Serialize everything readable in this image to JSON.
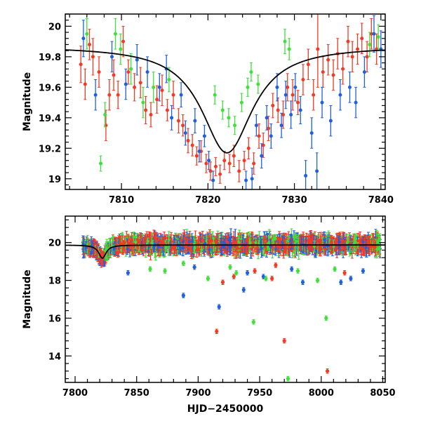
{
  "colors": {
    "red": "#f23a24",
    "blue": "#1f5fe0",
    "green": "#3ee03a",
    "model": "#000000"
  },
  "chart_data": [
    {
      "type": "scatter",
      "panel": "top",
      "xlabel": "",
      "ylabel": "Magnitude",
      "xlim": [
        7803.5,
        7840.5
      ],
      "ylim": [
        20.08,
        18.93
      ],
      "y_inverted": true,
      "xticks": [
        7810,
        7820,
        7830,
        7840
      ],
      "yticks": [
        19,
        19.2,
        19.4,
        19.6,
        19.8,
        20
      ],
      "model_curve": {
        "t0": 7822.2,
        "peak_mag": 19.17,
        "baseline_mag": 19.87,
        "width_days": 3.6
      },
      "series": [
        {
          "name": "red",
          "color_key": "red",
          "points": [
            [
              7805.3,
              19.75,
              0.12
            ],
            [
              7805.8,
              19.62,
              0.1
            ],
            [
              7806.3,
              19.88,
              0.1
            ],
            [
              7806.7,
              19.8,
              0.12
            ],
            [
              7807.4,
              19.7,
              0.1
            ],
            [
              7808.2,
              19.35,
              0.1
            ],
            [
              7808.6,
              19.55,
              0.1
            ],
            [
              7809.1,
              19.68,
              0.1
            ],
            [
              7809.6,
              19.55,
              0.09
            ],
            [
              7810.2,
              19.9,
              0.1
            ],
            [
              7810.8,
              19.7,
              0.08
            ],
            [
              7811.5,
              19.6,
              0.09
            ],
            [
              7812.2,
              19.63,
              0.1
            ],
            [
              7812.8,
              19.45,
              0.09
            ],
            [
              7813.4,
              19.42,
              0.08
            ],
            [
              7814.1,
              19.52,
              0.09
            ],
            [
              7814.7,
              19.58,
              0.1
            ],
            [
              7815.3,
              19.45,
              0.07
            ],
            [
              7816.0,
              19.55,
              0.09
            ],
            [
              7816.6,
              19.38,
              0.08
            ],
            [
              7817.1,
              19.35,
              0.07
            ],
            [
              7817.7,
              19.25,
              0.08
            ],
            [
              7818.2,
              19.22,
              0.07
            ],
            [
              7818.7,
              19.15,
              0.06
            ],
            [
              7819.2,
              19.18,
              0.07
            ],
            [
              7819.8,
              19.1,
              0.06
            ],
            [
              7820.3,
              19.05,
              0.06
            ],
            [
              7820.9,
              19.08,
              0.06
            ],
            [
              7821.4,
              19.03,
              0.06
            ],
            [
              7821.9,
              19.12,
              0.06
            ],
            [
              7822.5,
              19.1,
              0.06
            ],
            [
              7823.0,
              19.15,
              0.07
            ],
            [
              7823.6,
              19.05,
              0.07
            ],
            [
              7824.2,
              19.12,
              0.06
            ],
            [
              7824.7,
              19.2,
              0.07
            ],
            [
              7825.3,
              19.1,
              0.07
            ],
            [
              7825.9,
              19.28,
              0.08
            ],
            [
              7826.4,
              19.22,
              0.08
            ],
            [
              7827.0,
              19.33,
              0.08
            ],
            [
              7827.5,
              19.48,
              0.08
            ],
            [
              7828.1,
              19.45,
              0.08
            ],
            [
              7828.7,
              19.42,
              0.09
            ],
            [
              7829.2,
              19.6,
              0.09
            ],
            [
              7829.8,
              19.55,
              0.1
            ],
            [
              7830.4,
              19.5,
              0.08
            ],
            [
              7831.0,
              19.65,
              0.1
            ],
            [
              7831.6,
              19.75,
              0.1
            ],
            [
              7832.2,
              19.55,
              0.1
            ],
            [
              7832.7,
              19.85,
              0.25
            ],
            [
              7833.3,
              19.7,
              0.1
            ],
            [
              7833.9,
              19.78,
              0.1
            ],
            [
              7834.5,
              19.68,
              0.1
            ],
            [
              7835.0,
              19.82,
              0.1
            ],
            [
              7835.6,
              19.72,
              0.1
            ],
            [
              7836.2,
              19.9,
              0.1
            ],
            [
              7836.7,
              19.8,
              0.1
            ],
            [
              7837.3,
              19.85,
              0.1
            ],
            [
              7837.8,
              19.92,
              0.1
            ],
            [
              7838.4,
              19.8,
              0.1
            ],
            [
              7838.9,
              19.95,
              0.1
            ],
            [
              7839.5,
              19.85,
              0.1
            ]
          ]
        },
        {
          "name": "blue",
          "color_key": "blue",
          "points": [
            [
              7805.6,
              19.92,
              0.12
            ],
            [
              7807.0,
              19.55,
              0.1
            ],
            [
              7808.9,
              19.8,
              0.1
            ],
            [
              7810.5,
              19.62,
              0.1
            ],
            [
              7811.8,
              19.78,
              0.1
            ],
            [
              7813.0,
              19.7,
              0.1
            ],
            [
              7814.4,
              19.6,
              0.09
            ],
            [
              7815.2,
              19.72,
              0.09
            ],
            [
              7815.8,
              19.4,
              0.08
            ],
            [
              7816.9,
              19.55,
              0.08
            ],
            [
              7817.4,
              19.3,
              0.08
            ],
            [
              7818.5,
              19.38,
              0.08
            ],
            [
              7819.0,
              19.18,
              0.07
            ],
            [
              7819.6,
              19.28,
              0.07
            ],
            [
              7820.1,
              19.12,
              0.06
            ],
            [
              7820.6,
              18.99,
              0.06
            ],
            [
              7824.4,
              18.99,
              0.06
            ],
            [
              7825.1,
              19.0,
              0.07
            ],
            [
              7825.6,
              19.35,
              0.07
            ],
            [
              7826.2,
              19.15,
              0.08
            ],
            [
              7826.8,
              19.4,
              0.08
            ],
            [
              7827.3,
              19.28,
              0.08
            ],
            [
              7828.0,
              19.6,
              0.09
            ],
            [
              7828.5,
              19.35,
              0.08
            ],
            [
              7829.0,
              19.55,
              0.09
            ],
            [
              7829.6,
              19.42,
              0.09
            ],
            [
              7830.1,
              19.6,
              0.09
            ],
            [
              7830.7,
              19.45,
              0.09
            ],
            [
              7831.3,
              19.02,
              0.1
            ],
            [
              7832.0,
              19.3,
              0.1
            ],
            [
              7832.6,
              19.05,
              0.12
            ],
            [
              7833.2,
              19.5,
              0.1
            ],
            [
              7834.2,
              19.38,
              0.1
            ],
            [
              7835.3,
              19.55,
              0.1
            ],
            [
              7836.4,
              19.6,
              0.1
            ],
            [
              7837.1,
              19.5,
              0.1
            ],
            [
              7838.1,
              19.7,
              0.1
            ],
            [
              7839.2,
              19.95,
              0.12
            ],
            [
              7840.0,
              19.85,
              0.12
            ]
          ]
        },
        {
          "name": "green",
          "color_key": "green",
          "points": [
            [
              7806.0,
              19.95,
              0.1
            ],
            [
              7807.6,
              19.1,
              0.05
            ],
            [
              7808.1,
              19.42,
              0.08
            ],
            [
              7809.3,
              19.95,
              0.1
            ],
            [
              7809.9,
              19.85,
              0.1
            ],
            [
              7811.1,
              19.72,
              0.1
            ],
            [
              7812.5,
              19.5,
              0.1
            ],
            [
              7813.7,
              19.6,
              0.1
            ],
            [
              7815.5,
              19.65,
              0.08
            ],
            [
              7820.8,
              19.55,
              0.06
            ],
            [
              7821.7,
              19.45,
              0.06
            ],
            [
              7822.4,
              19.4,
              0.06
            ],
            [
              7823.1,
              19.35,
              0.06
            ],
            [
              7823.9,
              19.5,
              0.06
            ],
            [
              7824.6,
              19.6,
              0.06
            ],
            [
              7825.0,
              19.7,
              0.06
            ],
            [
              7825.8,
              19.62,
              0.06
            ],
            [
              7828.9,
              19.9,
              0.08
            ],
            [
              7829.4,
              19.85,
              0.07
            ],
            [
              7838.7,
              19.88,
              0.08
            ],
            [
              7839.7,
              19.93,
              0.08
            ]
          ]
        }
      ]
    },
    {
      "type": "scatter",
      "panel": "bottom",
      "xlabel": "HJD−2450000",
      "ylabel": "Magnitude",
      "xlim": [
        7792,
        8052
      ],
      "ylim": [
        21.4,
        12.6
      ],
      "y_inverted": true,
      "xticks": [
        7800,
        7850,
        7900,
        7950,
        8000,
        8050
      ],
      "yticks": [
        14,
        16,
        18,
        20
      ],
      "dense_band": {
        "x_range": [
          7806,
          8048
        ],
        "center_mag": 19.9,
        "spread_mag": 0.45
      },
      "model_curve": {
        "t0": 7822.2,
        "peak_mag": 19.17,
        "baseline_mag": 19.87,
        "width_days": 3.6
      },
      "outliers": [
        {
          "color_key": "red",
          "points": [
            [
              7915,
              15.3
            ],
            [
              7920,
              17.9
            ],
            [
              7929,
              18.2
            ],
            [
              7946,
              18.5
            ],
            [
              7960,
              18.1
            ],
            [
              7970,
              14.8
            ],
            [
              8005,
              13.2
            ],
            [
              8019,
              18.4
            ],
            [
              7963,
              18.8
            ]
          ]
        },
        {
          "color_key": "blue",
          "points": [
            [
              7843,
              18.4
            ],
            [
              7888,
              17.2
            ],
            [
              7917,
              16.6
            ],
            [
              7937,
              17.5
            ],
            [
              7940,
              18.4
            ],
            [
              7953,
              18.2
            ],
            [
              7985,
              17.9
            ],
            [
              8016,
              17.9
            ],
            [
              8024,
              18.1
            ],
            [
              8034,
              18.5
            ],
            [
              7897,
              18.7
            ],
            [
              7976,
              18.6
            ]
          ]
        },
        {
          "color_key": "green",
          "points": [
            [
              7861,
              18.6
            ],
            [
              7873,
              18.5
            ],
            [
              7908,
              18.1
            ],
            [
              7931,
              18.4
            ],
            [
              7945,
              15.8
            ],
            [
              7955,
              18.1
            ],
            [
              7973,
              12.8
            ],
            [
              7981,
              18.5
            ],
            [
              7997,
              18.0
            ],
            [
              8004,
              16.0
            ],
            [
              8011,
              18.6
            ],
            [
              7888,
              18.9
            ],
            [
              7926,
              18.7
            ]
          ]
        }
      ]
    }
  ]
}
